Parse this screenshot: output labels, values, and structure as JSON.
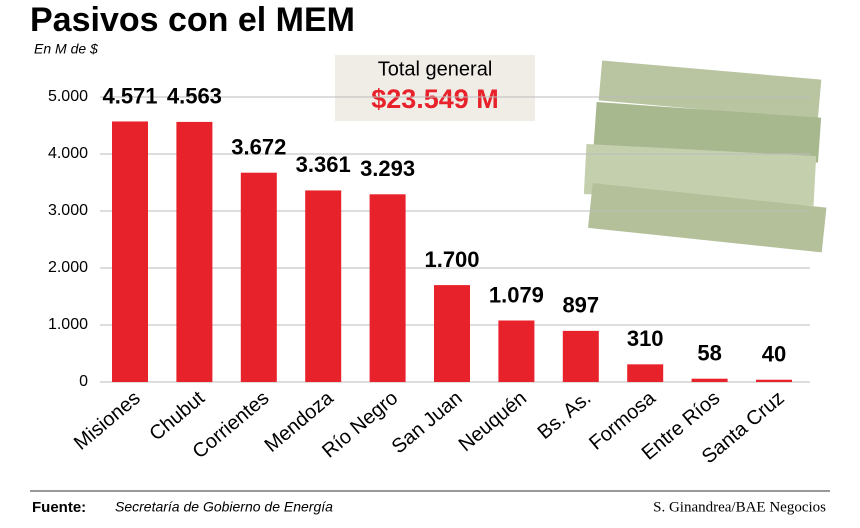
{
  "chart_data": {
    "type": "bar",
    "title": "Pasivos con el MEM",
    "subtitle": "En M de $",
    "total_label": "Total general",
    "total_value": "$23.549 M",
    "categories": [
      "Misiones",
      "Chubut",
      "Corrientes",
      "Mendoza",
      "Río Negro",
      "San Juan",
      "Neuquén",
      "Bs. As.",
      "Formosa",
      "Entre Ríos",
      "Santa Cruz"
    ],
    "values": [
      4571,
      4563,
      3672,
      3361,
      3293,
      1700,
      1079,
      897,
      310,
      58,
      40
    ],
    "value_labels": [
      "4.571",
      "4.563",
      "3.672",
      "3.361",
      "3.293",
      "1.700",
      "1.079",
      "897",
      "310",
      "58",
      "40"
    ],
    "color": "#e8222a",
    "ylim": [
      0,
      5000
    ],
    "yticks": [
      0,
      {
        "value": 1000,
        "label": "1.000"
      },
      {
        "value": 2000,
        "label": "2.000"
      },
      {
        "value": 3000,
        "label": "3.000"
      },
      {
        "value": 4000,
        "label": "4.000"
      },
      {
        "value": 5000,
        "label": "5.000"
      }
    ],
    "grid": true,
    "source_label": "Fuente:",
    "source": "Secretaría de Gobierno de Energía",
    "credit": "S. Ginandrea/BAE Negocios"
  }
}
